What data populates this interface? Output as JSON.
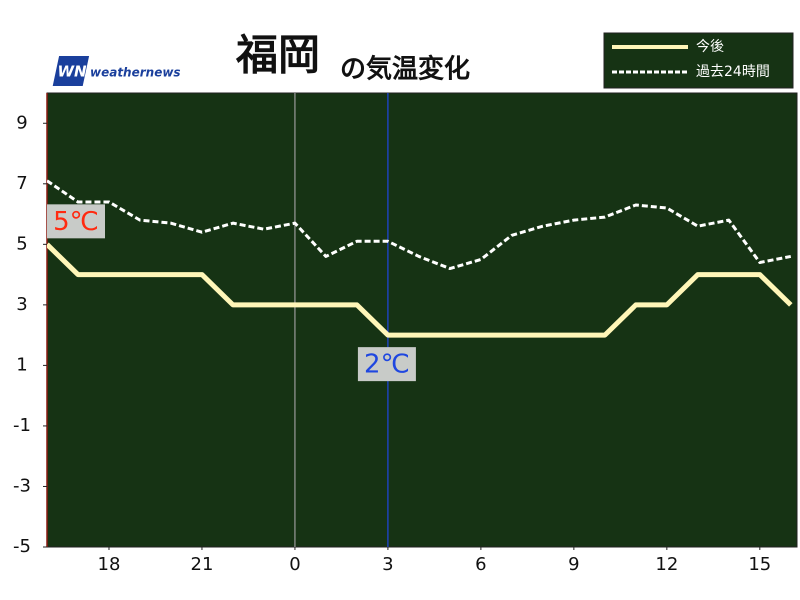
{
  "chart_data": {
    "type": "line",
    "title": "福岡",
    "subtitle": "の気温変化",
    "logo_mark": "WN",
    "logo": "weathernews",
    "x": [
      16,
      17,
      18,
      19,
      20,
      21,
      22,
      23,
      24,
      25,
      26,
      27,
      28,
      29,
      30,
      31,
      32,
      33,
      34,
      35,
      36,
      37,
      38,
      39,
      40
    ],
    "series": [
      {
        "name": "今後",
        "color": "#fff6b8",
        "dashed": false,
        "values": [
          5,
          4,
          4,
          4,
          4,
          4,
          3,
          3,
          3,
          3,
          3,
          2,
          2,
          2,
          2,
          2,
          2,
          2,
          2,
          3,
          3,
          4,
          4,
          4,
          3
        ]
      },
      {
        "name": "過去24時間",
        "color": "#ffffff",
        "dashed": true,
        "values": [
          7.1,
          6.4,
          6.4,
          5.8,
          5.7,
          5.4,
          5.7,
          5.5,
          5.7,
          4.6,
          5.1,
          5.1,
          4.6,
          4.2,
          4.5,
          5.3,
          5.6,
          5.8,
          5.9,
          6.3,
          6.2,
          5.6,
          5.8,
          4.4,
          4.6
        ]
      }
    ],
    "xlim": [
      16,
      40.2
    ],
    "xticks": [
      {
        "value": 18,
        "label": "18"
      },
      {
        "value": 21,
        "label": "21"
      },
      {
        "value": 24,
        "label": "0"
      },
      {
        "value": 27,
        "label": "3"
      },
      {
        "value": 30,
        "label": "6"
      },
      {
        "value": 33,
        "label": "9"
      },
      {
        "value": 36,
        "label": "12"
      },
      {
        "value": 39,
        "label": "15"
      }
    ],
    "ylim": [
      -5,
      10
    ],
    "yticks": [
      -5,
      -3,
      -1,
      1,
      3,
      5,
      7,
      9
    ],
    "vlines": [
      {
        "value": 24,
        "color": "#9a9a9a"
      },
      {
        "value": 27,
        "color": "#1f47e0"
      }
    ],
    "annotations": [
      {
        "text": "5℃",
        "x": 16,
        "y": 5,
        "color": "#ff2a10"
      },
      {
        "text": "2℃",
        "x": 27,
        "y": 2,
        "color": "#1f47e0"
      }
    ],
    "background": "#163314",
    "legend": "top-right"
  }
}
